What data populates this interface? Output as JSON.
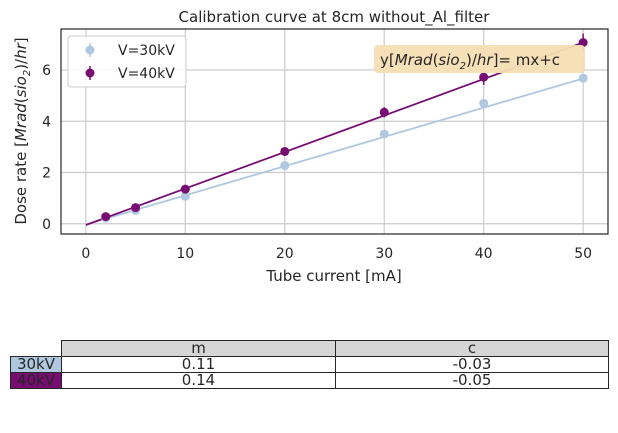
{
  "chart_data": {
    "type": "scatter",
    "title": "Calibration curve at 8cm without_Al_filter",
    "xlabel": "Tube current [mA]",
    "ylabel": "Dose rate [Mrad(sio2)/hr]",
    "xlim": [
      -2.5,
      52.5
    ],
    "ylim": [
      -0.4,
      7.6
    ],
    "xticks": [
      0,
      10,
      20,
      30,
      40,
      50
    ],
    "yticks": [
      0,
      2,
      4,
      6
    ],
    "grid": true,
    "legend_position": "upper-left",
    "annotation": "y[Mrad(sio2)/hr]= mx+c",
    "series": [
      {
        "name": "V=30kV",
        "color": "#b0c8df",
        "x": [
          2,
          5,
          10,
          20,
          30,
          40,
          50
        ],
        "y": [
          0.22,
          0.52,
          1.07,
          2.27,
          3.5,
          4.7,
          5.68
        ],
        "yerr": [
          0.08,
          0.08,
          0.1,
          0.12,
          0.12,
          0.15,
          0.15
        ],
        "fit": {
          "m": 0.114,
          "c": -0.03
        }
      },
      {
        "name": "V=40kV",
        "color": "#770c72",
        "x": [
          2,
          5,
          10,
          20,
          30,
          40,
          50
        ],
        "y": [
          0.28,
          0.63,
          1.35,
          2.82,
          4.35,
          5.72,
          7.07
        ],
        "yerr": [
          0.08,
          0.08,
          0.1,
          0.12,
          0.2,
          0.3,
          0.35
        ],
        "fit": {
          "m": 0.1425,
          "c": -0.05
        }
      }
    ],
    "table": {
      "columns": [
        "m",
        "c"
      ],
      "rows": [
        {
          "label": "30kV",
          "color": "#b0c8df",
          "values": [
            "0.11",
            "-0.03"
          ]
        },
        {
          "label": "40kV",
          "color": "#770c72",
          "values": [
            "0.14",
            "-0.05"
          ]
        }
      ]
    }
  }
}
